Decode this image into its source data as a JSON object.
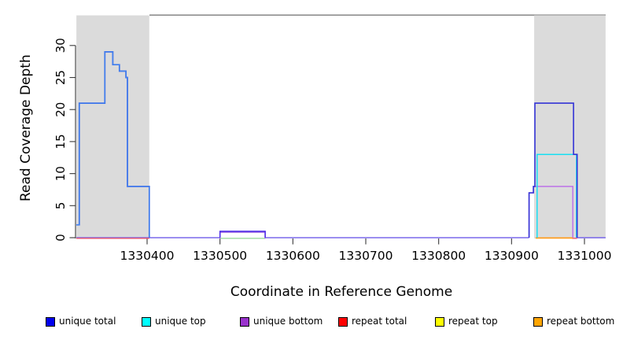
{
  "chart_data": {
    "type": "line",
    "subtype": "step-coverage",
    "title": "",
    "xlabel": "Coordinate in Reference Genome",
    "ylabel": "Read Coverage Depth",
    "xlim": [
      1330303,
      1331029
    ],
    "ylim": [
      0,
      34.8
    ],
    "xticks": [
      1330400,
      1330500,
      1330600,
      1330700,
      1330800,
      1330900,
      1331000
    ],
    "yticks": [
      0,
      5,
      10,
      15,
      20,
      25,
      30
    ],
    "grid": false,
    "legend_position": "bottom",
    "shaded_regions": [
      {
        "name": "left-masked-region",
        "x1": 1330303,
        "x2": 1330403,
        "color": "#DBDBDB"
      },
      {
        "name": "right-masked-region",
        "x1": 1330931,
        "x2": 1331029,
        "color": "#DBDBDB"
      }
    ],
    "series": [
      {
        "name": "unique total",
        "color": "#0000EE",
        "steps": [
          [
            1330303,
            2
          ],
          [
            1330307,
            21
          ],
          [
            1330342,
            29
          ],
          [
            1330353,
            27
          ],
          [
            1330362,
            26
          ],
          [
            1330371,
            25
          ],
          [
            1330373,
            8
          ],
          [
            1330403,
            0
          ],
          [
            1330500,
            1
          ],
          [
            1330562,
            0
          ],
          [
            1330924,
            7
          ],
          [
            1330930,
            8
          ],
          [
            1330932,
            21
          ],
          [
            1330985,
            13
          ],
          [
            1330990,
            0
          ]
        ]
      },
      {
        "name": "unique top",
        "color": "#00FFFF",
        "steps": [
          [
            1330303,
            2
          ],
          [
            1330307,
            21
          ],
          [
            1330342,
            29
          ],
          [
            1330353,
            27
          ],
          [
            1330362,
            26
          ],
          [
            1330371,
            25
          ],
          [
            1330373,
            8
          ],
          [
            1330403,
            0
          ],
          [
            1330935,
            13
          ],
          [
            1330989,
            0
          ]
        ]
      },
      {
        "name": "unique bottom",
        "color": "#9932CC",
        "steps": [
          [
            1330303,
            0
          ],
          [
            1330500,
            1
          ],
          [
            1330562,
            0
          ],
          [
            1330924,
            7
          ],
          [
            1330930,
            8
          ],
          [
            1330984,
            0
          ]
        ]
      },
      {
        "name": "repeat total",
        "color": "#FF0000",
        "steps": [
          [
            1330303,
            0
          ]
        ]
      },
      {
        "name": "repeat top",
        "color": "#FFFF00",
        "steps": [
          [
            1330303,
            0
          ]
        ]
      },
      {
        "name": "repeat bottom",
        "color": "#FFA500",
        "steps": [
          [
            1330303,
            0
          ]
        ]
      }
    ],
    "render_layers": [
      {
        "name": "baseline-overlap-a",
        "color": "#7A68EC",
        "width": 1.6,
        "dy": 0,
        "points": [
          [
            1330303,
            0
          ],
          [
            1330500,
            0
          ]
        ]
      },
      {
        "name": "baseline-overlap-b",
        "color": "#7A68EC",
        "width": 1.6,
        "dy": 0,
        "points": [
          [
            1330562,
            0
          ],
          [
            1330924,
            0
          ]
        ]
      },
      {
        "name": "baseline-overlap-c",
        "color": "#7A68EC",
        "width": 1.6,
        "dy": 0,
        "points": [
          [
            1330990,
            0
          ],
          [
            1331029,
            0
          ]
        ]
      },
      {
        "name": "repeat-total-left-segment",
        "color": "#E8586E",
        "width": 1.4,
        "dy": 0.8,
        "points": [
          [
            1330303,
            0
          ],
          [
            1330403,
            0
          ]
        ]
      },
      {
        "name": "repeat-total-right-segment",
        "color": "#E8586E",
        "width": 1.4,
        "dy": 0.8,
        "points": [
          [
            1330983,
            0
          ],
          [
            1330990,
            0
          ]
        ]
      },
      {
        "name": "unique-top-overlap-green",
        "color": "#9CD99F",
        "width": 1.4,
        "dy": 0.8,
        "points": [
          [
            1330500,
            0
          ],
          [
            1330562,
            0
          ]
        ]
      },
      {
        "name": "repeat-bottom-segment",
        "color": "#FF9D1E",
        "width": 1.7,
        "dy": 0.4,
        "points": [
          [
            1330933,
            0
          ],
          [
            1330984,
            0
          ]
        ]
      },
      {
        "name": "unique-bottom-bump",
        "color": "#A874E4",
        "width": 1.5,
        "dy": 1.2,
        "points": [
          [
            1330500,
            0
          ],
          [
            1330500,
            1
          ],
          [
            1330562,
            1
          ],
          [
            1330562,
            0
          ]
        ]
      },
      {
        "name": "unique-bottom-right",
        "color": "#BC72E8",
        "width": 1.5,
        "dy": 0,
        "points": [
          [
            1330924,
            0
          ],
          [
            1330924,
            7
          ],
          [
            1330930,
            7
          ],
          [
            1330930,
            8
          ],
          [
            1330984,
            8
          ],
          [
            1330984,
            0
          ]
        ]
      },
      {
        "name": "unique-top-right",
        "color": "#18DFF2",
        "width": 1.5,
        "dy": 0,
        "points": [
          [
            1330935,
            0
          ],
          [
            1330935,
            13
          ],
          [
            1330989,
            13
          ],
          [
            1330989,
            0
          ]
        ]
      },
      {
        "name": "unique-total-left",
        "color": "#3448D8",
        "width": 1.7,
        "dy": 0,
        "points": [
          [
            1330303,
            2
          ],
          [
            1330307,
            2
          ],
          [
            1330307,
            21
          ],
          [
            1330342,
            21
          ],
          [
            1330342,
            29
          ],
          [
            1330353,
            29
          ],
          [
            1330353,
            27
          ],
          [
            1330362,
            27
          ],
          [
            1330362,
            26
          ],
          [
            1330371,
            26
          ],
          [
            1330371,
            25
          ],
          [
            1330373,
            25
          ],
          [
            1330373,
            8
          ],
          [
            1330403,
            8
          ],
          [
            1330403,
            0
          ]
        ]
      },
      {
        "name": "unique-total-bump",
        "color": "#4B2BE8",
        "width": 1.5,
        "dy": 0,
        "points": [
          [
            1330500,
            0
          ],
          [
            1330500,
            1
          ],
          [
            1330562,
            1
          ],
          [
            1330562,
            0
          ]
        ]
      },
      {
        "name": "unique-total-right",
        "color": "#3434D6",
        "width": 1.6,
        "dy": 0,
        "points": [
          [
            1330924,
            0
          ],
          [
            1330924,
            7
          ],
          [
            1330930,
            7
          ],
          [
            1330930,
            8
          ],
          [
            1330932,
            8
          ],
          [
            1330932,
            21
          ],
          [
            1330985,
            21
          ],
          [
            1330985,
            13
          ],
          [
            1330990,
            13
          ],
          [
            1330990,
            0
          ]
        ]
      },
      {
        "name": "unique-top-left-overlay",
        "color": "#3F85F2",
        "width": 1.3,
        "dy": 0,
        "points": [
          [
            1330303,
            2
          ],
          [
            1330307,
            2
          ],
          [
            1330307,
            21
          ],
          [
            1330342,
            21
          ],
          [
            1330342,
            29
          ],
          [
            1330353,
            29
          ],
          [
            1330353,
            27
          ],
          [
            1330362,
            27
          ],
          [
            1330362,
            26
          ],
          [
            1330371,
            26
          ],
          [
            1330371,
            25
          ],
          [
            1330373,
            25
          ],
          [
            1330373,
            8
          ],
          [
            1330403,
            8
          ],
          [
            1330403,
            0
          ]
        ]
      }
    ]
  }
}
